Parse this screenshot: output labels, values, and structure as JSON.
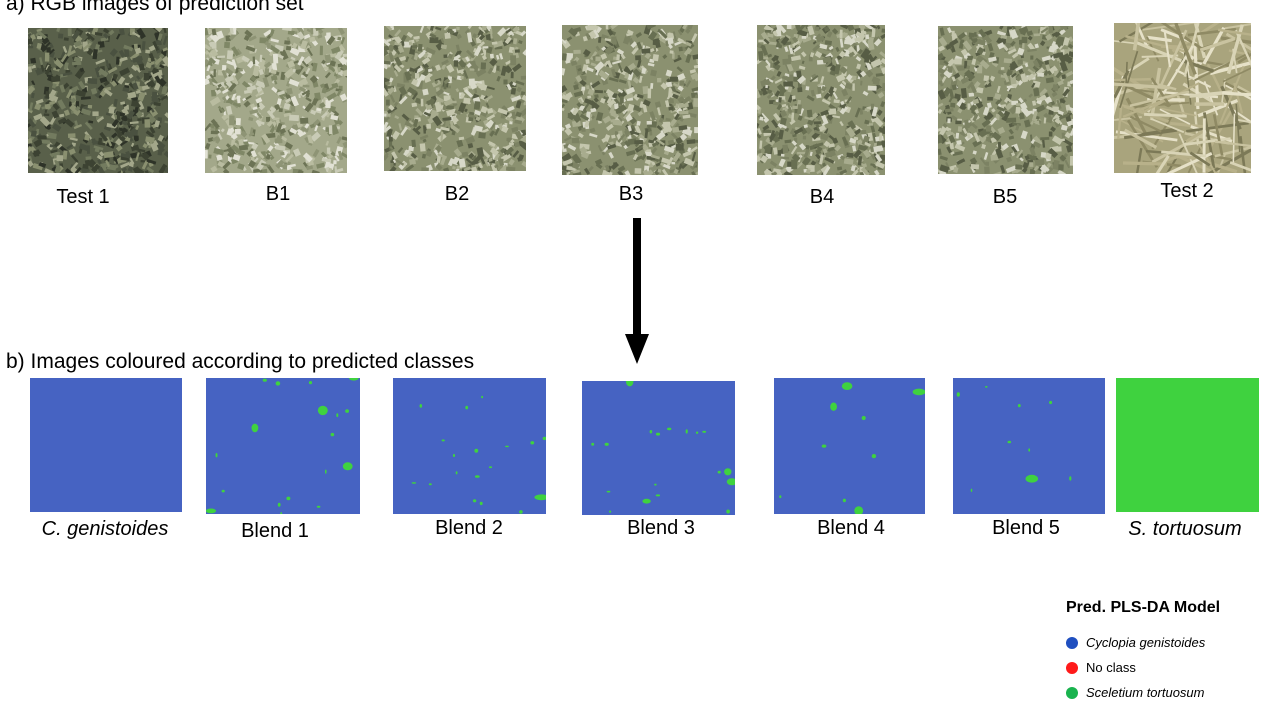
{
  "colors": {
    "predicted_cyclopia": "#4663c2",
    "predicted_sceletium": "#3fd23f",
    "legend_cyclopia": "#1f4fc0",
    "legend_no_class": "#ff1a1a",
    "legend_sceletium": "#19b34e",
    "arrow": "#000000"
  },
  "section_a": {
    "title": "a)  RGB images of prediction set",
    "images": [
      {
        "label": "Test 1",
        "texture": "dark-grey-green"
      },
      {
        "label": "B1",
        "texture": "light-grey-green"
      },
      {
        "label": "B2",
        "texture": "grey-green"
      },
      {
        "label": "B3",
        "texture": "grey-green"
      },
      {
        "label": "B4",
        "texture": "grey-green"
      },
      {
        "label": "B5",
        "texture": "grey-green"
      },
      {
        "label": "Test 2",
        "texture": "straw-fibrous"
      }
    ]
  },
  "arrow": {
    "icon": "down-arrow-icon"
  },
  "section_b": {
    "title": "b) Images coloured according to predicted classes",
    "images": [
      {
        "label": "C. genistoides",
        "italic": true,
        "class_map": "all-cyclopia",
        "green_fraction": 0
      },
      {
        "label": "Blend 1",
        "italic": false,
        "class_map": "mixed",
        "green_fraction": 0.02
      },
      {
        "label": "Blend 2",
        "italic": false,
        "class_map": "mixed",
        "green_fraction": 0.02
      },
      {
        "label": "Blend 3",
        "italic": false,
        "class_map": "mixed",
        "green_fraction": 0.02
      },
      {
        "label": "Blend 4",
        "italic": false,
        "class_map": "mixed",
        "green_fraction": 0.01
      },
      {
        "label": "Blend 5",
        "italic": false,
        "class_map": "mixed",
        "green_fraction": 0.01
      },
      {
        "label": "S. tortuosum",
        "italic": true,
        "class_map": "all-sceletium",
        "green_fraction": 1
      }
    ]
  },
  "legend": {
    "title": "Pred. PLS-DA Model",
    "items": [
      {
        "label": "Cyclopia genistoides",
        "italic": true
      },
      {
        "label": "No class",
        "italic": false
      },
      {
        "label": "Sceletium tortuosum",
        "italic": true
      }
    ]
  }
}
